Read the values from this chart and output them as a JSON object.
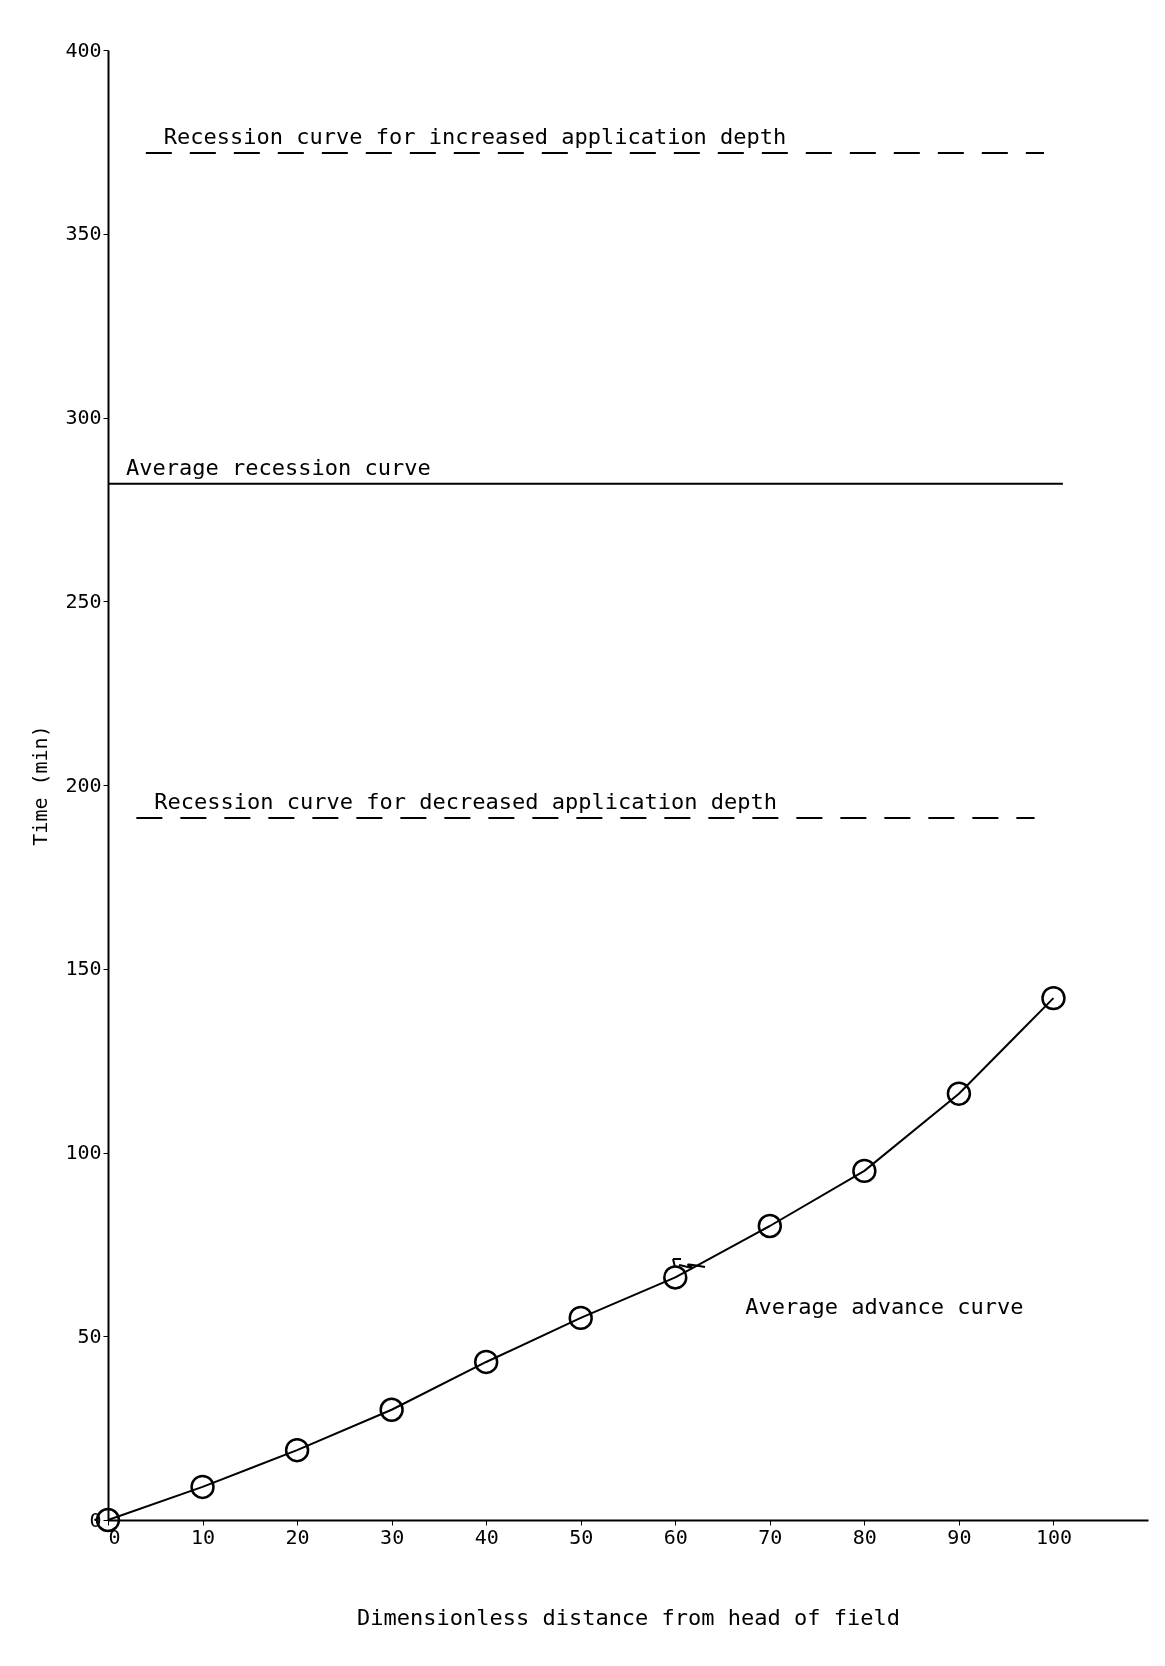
{
  "chart_data": {
    "type": "line",
    "xlabel": "Dimensionless distance from head of field",
    "ylabel": "Time (min)",
    "xlim": [
      0,
      110
    ],
    "ylim": [
      0,
      400
    ],
    "xticks": [
      0,
      10,
      20,
      30,
      40,
      50,
      60,
      70,
      80,
      90,
      100
    ],
    "yticks": [
      0,
      50,
      100,
      150,
      200,
      250,
      300,
      350,
      400
    ],
    "grid": false,
    "series": [
      {
        "name": "Average advance curve",
        "color": "#000000",
        "marker": "circle",
        "line_style": "solid",
        "x": [
          0,
          10,
          20,
          30,
          40,
          50,
          60,
          70,
          80,
          90,
          100
        ],
        "values": [
          0,
          9,
          19,
          30,
          43,
          55,
          66,
          80,
          95,
          116,
          142
        ]
      },
      {
        "name": "Recession curve for increased application depth",
        "color": "#000000",
        "marker": "none",
        "line_style": "dashed",
        "x": [
          4,
          99
        ],
        "values": [
          372,
          372
        ]
      },
      {
        "name": "Average recession curve",
        "color": "#000000",
        "marker": "none",
        "line_style": "solid",
        "x": [
          0,
          101
        ],
        "values": [
          282,
          282
        ]
      },
      {
        "name": "Recession curve for decreased application depth",
        "color": "#000000",
        "marker": "none",
        "line_style": "dashed",
        "x": [
          3,
          98
        ],
        "values": [
          191,
          191
        ]
      }
    ]
  }
}
